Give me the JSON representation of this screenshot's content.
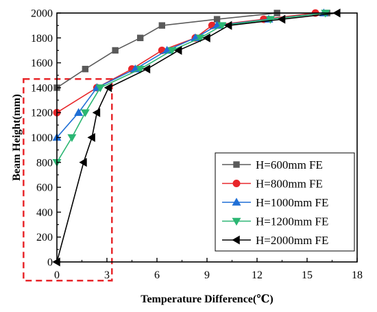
{
  "chart_data": {
    "type": "line",
    "xlabel": "Temperature Difference(℃)",
    "ylabel": "Beam Height(mm)",
    "xlim": [
      0,
      18
    ],
    "ylim": [
      0,
      2000
    ],
    "xticks": [
      "0",
      "3",
      "6",
      "9",
      "12",
      "15",
      "18"
    ],
    "yticks": [
      "0",
      "200",
      "400",
      "600",
      "800",
      "1000",
      "1200",
      "1400",
      "1600",
      "1800",
      "2000"
    ],
    "grid": false,
    "legend_position": "bottom-right",
    "highlight_box": {
      "x_range": [
        -2,
        3.3
      ],
      "y_range": [
        -150,
        1470
      ],
      "color": "#e8262a",
      "style": "dashed"
    },
    "series": [
      {
        "name": "H=600mm FE",
        "color": "#5a5a5a",
        "marker": "square",
        "x": [
          0,
          1.7,
          3.5,
          5,
          6.3,
          9.6,
          13.2,
          16.2
        ],
        "y": [
          1400,
          1550,
          1700,
          1800,
          1900,
          1950,
          2000,
          2000
        ]
      },
      {
        "name": "H=800mm FE",
        "color": "#e8262a",
        "marker": "circle",
        "x": [
          0,
          2.4,
          4.5,
          6.3,
          8.3,
          9.3,
          12.4,
          15.5
        ],
        "y": [
          1200,
          1400,
          1550,
          1700,
          1800,
          1900,
          1950,
          2000
        ]
      },
      {
        "name": "H=1000mm FE",
        "color": "#1f6fd6",
        "marker": "triangle-up",
        "x": [
          0,
          1.3,
          2.4,
          4.7,
          6.6,
          8.3,
          9.6,
          12.7,
          16
        ],
        "y": [
          1000,
          1200,
          1400,
          1550,
          1700,
          1800,
          1900,
          1950,
          2000
        ]
      },
      {
        "name": "H=1200mm FE",
        "color": "#2bb673",
        "marker": "triangle-down",
        "x": [
          0,
          0.9,
          1.7,
          2.6,
          5,
          6.9,
          8.6,
          9.9,
          12.8,
          16.1
        ],
        "y": [
          800,
          1000,
          1200,
          1400,
          1550,
          1700,
          1800,
          1900,
          1950,
          2000
        ]
      },
      {
        "name": "H=2000mm FE",
        "color": "#000000",
        "marker": "triangle-left",
        "x": [
          0,
          1.6,
          2.1,
          2.4,
          3.1,
          5.4,
          7.3,
          9,
          10.3,
          13.5,
          16.8
        ],
        "y": [
          0,
          800,
          1000,
          1200,
          1400,
          1550,
          1700,
          1800,
          1900,
          1950,
          2000
        ]
      }
    ]
  }
}
